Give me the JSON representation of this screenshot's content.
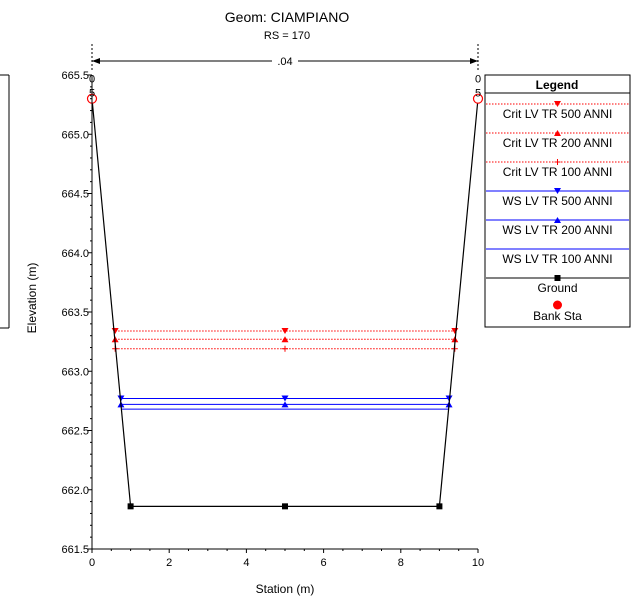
{
  "chart_data": {
    "type": "line",
    "title": "Geom: CIAMPIANO",
    "subtitle": "RS = 170",
    "xlabel": "Station (m)",
    "ylabel": "Elevation (m)",
    "xlim": [
      0,
      10
    ],
    "ylim": [
      661.5,
      665.5
    ],
    "x_ticks": [
      "0",
      "2",
      "4",
      "6",
      "8",
      "10"
    ],
    "y_ticks": [
      "661.5",
      "662.0",
      "662.5",
      "663.0",
      "663.5",
      "664.0",
      "664.5",
      "665.0",
      "665.5"
    ],
    "manning_n": ".04",
    "bank_label_top": "0",
    "bank_label_bottom": "5",
    "grid": false,
    "legend_position": "right",
    "legend_title": "Legend",
    "series": [
      {
        "name": "Crit LV TR 500 ANNI",
        "kind": "crit",
        "marker": "tri-down",
        "color": "#ff0000",
        "x": [
          0.6,
          5,
          9.4
        ],
        "y": [
          663.34,
          663.34,
          663.34
        ]
      },
      {
        "name": "Crit LV TR 200 ANNI",
        "kind": "crit",
        "marker": "tri-up",
        "color": "#ff0000",
        "x": [
          0.6,
          5,
          9.4
        ],
        "y": [
          663.27,
          663.27,
          663.27
        ]
      },
      {
        "name": "Crit LV TR 100 ANNI",
        "kind": "crit",
        "marker": "plus",
        "color": "#ff0000",
        "x": [
          0.6,
          5,
          9.4
        ],
        "y": [
          663.19,
          663.19,
          663.19
        ]
      },
      {
        "name": "WS LV TR 500 ANNI",
        "kind": "ws",
        "marker": "tri-down",
        "color": "#0000ff",
        "x": [
          0.75,
          5,
          9.25
        ],
        "y": [
          662.77,
          662.77,
          662.77
        ]
      },
      {
        "name": "WS LV TR 200 ANNI",
        "kind": "ws",
        "marker": "tri-up",
        "color": "#0000ff",
        "x": [
          0.75,
          5,
          9.25
        ],
        "y": [
          662.72,
          662.72,
          662.72
        ]
      },
      {
        "name": "WS LV TR 100 ANNI",
        "kind": "ws",
        "marker": "none",
        "color": "#0000ff",
        "x": [
          0.75,
          5,
          9.25
        ],
        "y": [
          662.68,
          662.68,
          662.68
        ]
      },
      {
        "name": "Ground",
        "kind": "ground",
        "marker": "square",
        "color": "#000000",
        "x": [
          0,
          1,
          5,
          9,
          10
        ],
        "y": [
          665.3,
          661.86,
          661.86,
          661.86,
          665.3
        ]
      },
      {
        "name": "Bank Sta",
        "kind": "bank",
        "marker": "circle",
        "color": "#ff0000",
        "x": [
          0,
          10
        ],
        "y": [
          665.3,
          665.3
        ]
      }
    ]
  }
}
